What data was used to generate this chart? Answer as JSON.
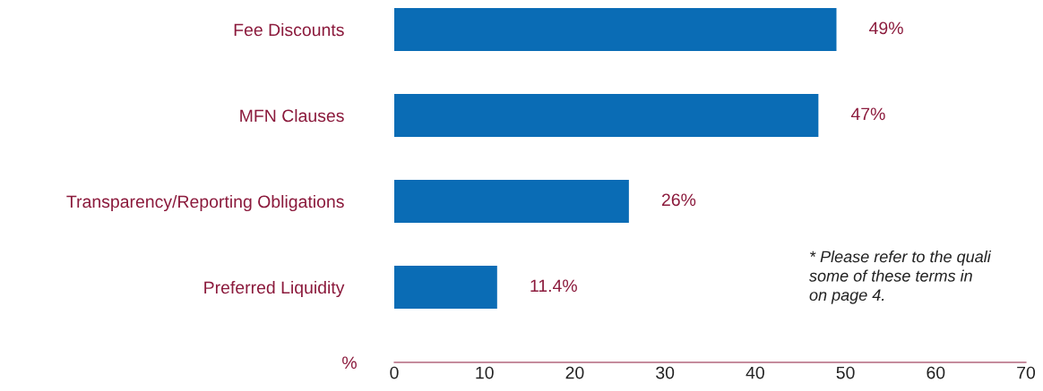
{
  "chart_data": {
    "type": "bar",
    "orientation": "horizontal",
    "categories": [
      "Fee Discounts",
      "MFN Clauses",
      "Transparency/Reporting Obligations",
      "Preferred Liquidity"
    ],
    "values": [
      49,
      47,
      26,
      11.4
    ],
    "value_labels": [
      "49%",
      "47%",
      "26%",
      "11.4%"
    ],
    "color": "#0a6cb5",
    "xlabel": "%",
    "xlim": [
      0,
      70
    ],
    "xticks": [
      0,
      10,
      20,
      30,
      40,
      50,
      60,
      70
    ],
    "grid": false,
    "annotations": [
      "* Please refer to the quali\nsome of these terms in\non page 4."
    ]
  }
}
